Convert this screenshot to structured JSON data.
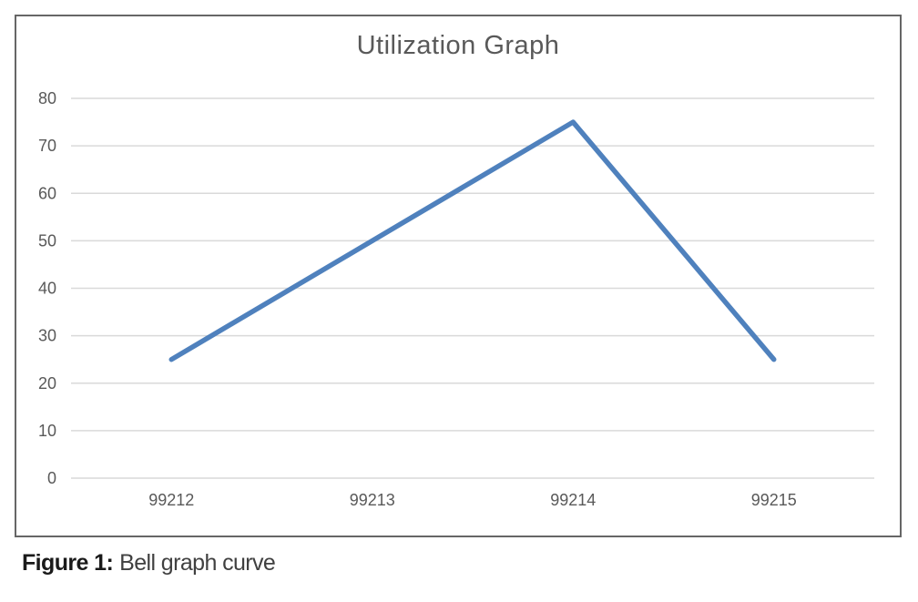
{
  "figure": {
    "caption_label": "Figure 1:",
    "caption_text": "Bell graph curve"
  },
  "chart_data": {
    "type": "line",
    "title": "Utilization Graph",
    "categories": [
      "99212",
      "99213",
      "99214",
      "99215"
    ],
    "values": [
      25,
      50,
      75,
      25
    ],
    "xlabel": "",
    "ylabel": "",
    "ylim": [
      0,
      80
    ],
    "yticks": [
      80,
      70,
      60,
      50,
      40,
      30,
      20,
      10,
      0
    ],
    "grid": true,
    "legend": false,
    "colors": {
      "line": "#4F81BD",
      "gridline": "#D9D9D9",
      "axis_text": "#595959",
      "title_text": "#595959",
      "frame_border": "#666666"
    }
  }
}
